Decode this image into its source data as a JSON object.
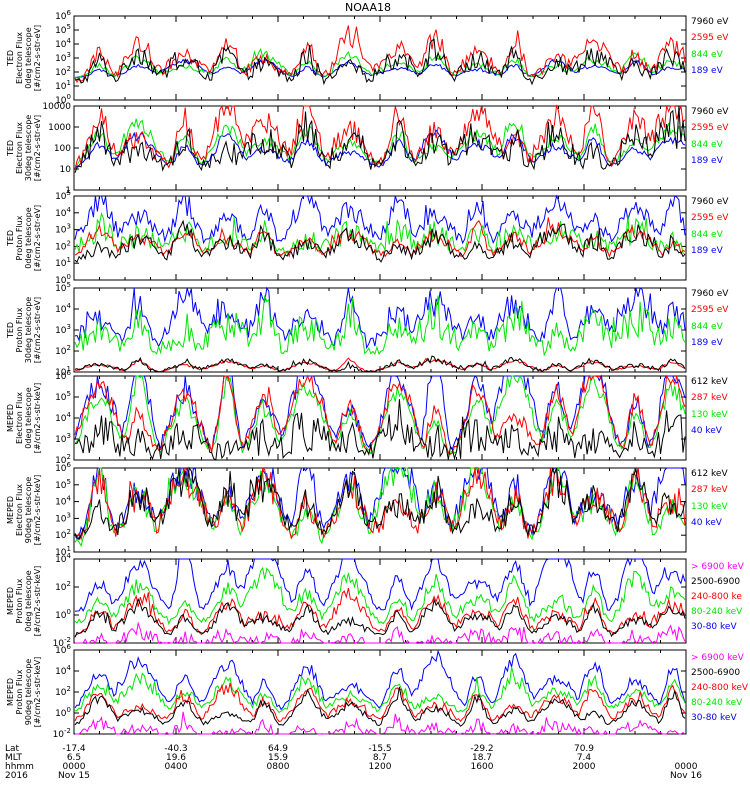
{
  "title": "NOAA18",
  "colors": {
    "black": "#000000",
    "red": "#ff0000",
    "green": "#00e600",
    "blue": "#0000ff",
    "magenta": "#ff00ff"
  },
  "footer": {
    "row_labels": [
      "Lat",
      "MLT",
      "hhmm",
      "2016"
    ],
    "ticks": [
      {
        "lat": "-17.4",
        "mlt": "6.5",
        "time": "0000",
        "date": "Nov 15"
      },
      {
        "lat": "-40.3",
        "mlt": "19.6",
        "time": "0400",
        "date": ""
      },
      {
        "lat": "64.9",
        "mlt": "15.9",
        "time": "0800",
        "date": ""
      },
      {
        "lat": "-15.5",
        "mlt": "8.7",
        "time": "1200",
        "date": ""
      },
      {
        "lat": "-29.2",
        "mlt": "18.7",
        "time": "1600",
        "date": ""
      },
      {
        "lat": "70.9",
        "mlt": "7.4",
        "time": "2000",
        "date": ""
      },
      {
        "lat": "",
        "mlt": "",
        "time": "0000",
        "date": "Nov 16"
      }
    ]
  },
  "chart_data": [
    {
      "type": "line",
      "ylabel": [
        "TED",
        "Electron Flux",
        "0deg telescope",
        "[#/cm2-s-str-eV]"
      ],
      "yscale": "log",
      "yticks": [
        "10^0",
        "10^1",
        "10^2",
        "10^3",
        "10^4",
        "10^5",
        "10^6"
      ],
      "xlim": [
        "0000",
        "0000"
      ],
      "series": [
        {
          "name": "7960 eV",
          "color": "#000000",
          "level": 1.3,
          "peak": 3.2,
          "spike": 0.55
        },
        {
          "name": "2595 eV",
          "color": "#ff0000",
          "level": 1.5,
          "peak": 4.1,
          "spike": 0.5
        },
        {
          "name": "844 eV",
          "color": "#00e600",
          "level": 1.6,
          "peak": 3.0,
          "spike": 0.2
        },
        {
          "name": "189 eV",
          "color": "#0000ff",
          "level": 1.6,
          "peak": 2.6,
          "spike": 0.1
        }
      ]
    },
    {
      "type": "line",
      "ylabel": [
        "TED",
        "Electron Flux",
        "30deg telescope",
        "[#/cm2-s-str-eV]"
      ],
      "yscale": "log",
      "yticks": [
        "1",
        "10",
        "100",
        "1000",
        "10000"
      ],
      "series": [
        {
          "name": "7960 eV",
          "color": "#000000",
          "level": 1.0,
          "peak": 2.6,
          "spike": 0.55
        },
        {
          "name": "2595 eV",
          "color": "#ff0000",
          "level": 1.1,
          "peak": 3.7,
          "spike": 0.5
        },
        {
          "name": "844 eV",
          "color": "#00e600",
          "level": 1.2,
          "peak": 2.8,
          "spike": 0.2
        },
        {
          "name": "189 eV",
          "color": "#0000ff",
          "level": 1.1,
          "peak": 2.4,
          "spike": 0.15
        }
      ]
    },
    {
      "type": "line",
      "ylabel": [
        "TED",
        "Proton Flux",
        "0deg telescope",
        "[#/cm2-s-str-eV]"
      ],
      "yscale": "log",
      "yticks": [
        "10^0",
        "10^1",
        "10^2",
        "10^3",
        "10^4",
        "10^5"
      ],
      "series": [
        {
          "name": "7960 eV",
          "color": "#000000",
          "level": 1.1,
          "peak": 2.6,
          "spike": 0.4
        },
        {
          "name": "2595 eV",
          "color": "#ff0000",
          "level": 1.3,
          "peak": 2.8,
          "spike": 0.3
        },
        {
          "name": "844 eV",
          "color": "#00e600",
          "level": 1.7,
          "peak": 3.0,
          "spike": 0.6
        },
        {
          "name": "189 eV",
          "color": "#0000ff",
          "level": 2.2,
          "peak": 4.6,
          "spike": 0.5
        }
      ]
    },
    {
      "type": "line",
      "ylabel": [
        "TED",
        "Proton Flux",
        "30deg telescope",
        "[#/cm2-s-str-eV]"
      ],
      "yscale": "log",
      "yticks": [
        "10^1",
        "10^2",
        "10^3",
        "10^4",
        "10^5"
      ],
      "series": [
        {
          "name": "7960 eV",
          "color": "#000000",
          "level": 1.0,
          "peak": 1.5,
          "spike": 0.1
        },
        {
          "name": "2595 eV",
          "color": "#ff0000",
          "level": 1.0,
          "peak": 1.5,
          "spike": 0.05
        },
        {
          "name": "844 eV",
          "color": "#00e600",
          "level": 2.0,
          "peak": 3.4,
          "spike": 0.6
        },
        {
          "name": "189 eV",
          "color": "#0000ff",
          "level": 2.3,
          "peak": 4.4,
          "spike": 0.5
        }
      ]
    },
    {
      "type": "line",
      "ylabel": [
        "MEPED",
        "Electron Flux",
        "0deg telescope",
        "[#/cm2-s-str-keV]"
      ],
      "yscale": "log",
      "yticks": [
        "10^2",
        "10^3",
        "10^4",
        "10^5",
        "10^6"
      ],
      "series": [
        {
          "name": "612 keV",
          "color": "#000000",
          "level": 2.3,
          "peak": 3.3,
          "spike": 0.7
        },
        {
          "name": "287 keV",
          "color": "#ff0000",
          "level": 2.1,
          "peak": 5.6,
          "spike": 0.35
        },
        {
          "name": "130 keV",
          "color": "#00e600",
          "level": 2.0,
          "peak": 5.3,
          "spike": 0.3
        },
        {
          "name": "40 keV",
          "color": "#0000ff",
          "level": 2.1,
          "peak": 6.5,
          "spike": 0.45
        }
      ]
    },
    {
      "type": "line",
      "ylabel": [
        "MEPED",
        "Electron Flux",
        "90deg telescope",
        "[#/cm2-s-str-keV]"
      ],
      "yscale": "log",
      "yticks": [
        "10^1",
        "10^2",
        "10^3",
        "10^4",
        "10^5",
        "10^6"
      ],
      "series": [
        {
          "name": "612 keV",
          "color": "#000000",
          "level": 2.0,
          "peak": 4.8,
          "spike": 0.75
        },
        {
          "name": "287 keV",
          "color": "#ff0000",
          "level": 1.8,
          "peak": 5.0,
          "spike": 0.7
        },
        {
          "name": "130 keV",
          "color": "#00e600",
          "level": 1.5,
          "peak": 5.3,
          "spike": 0.65
        },
        {
          "name": "40 keV",
          "color": "#0000ff",
          "level": 2.0,
          "peak": 6.1,
          "spike": 0.7
        }
      ]
    },
    {
      "type": "line",
      "ylabel": [
        "MEPED",
        "Proton Flux",
        "0deg telescope",
        "[#/cm2-s-str-keV]"
      ],
      "yscale": "log",
      "yticks": [
        "10^-2",
        "10^0",
        "10^2",
        "10^4"
      ],
      "series": [
        {
          "name": "> 6900 keV",
          "color": "#ff00ff",
          "level": -2.3,
          "peak": -1.4,
          "spike": 0.4
        },
        {
          "name": "2500-6900",
          "color": "#000000",
          "level": -1.5,
          "peak": 0.4,
          "spike": 0.3
        },
        {
          "name": "240-800 ke",
          "color": "#ff0000",
          "level": -1.4,
          "peak": 1.0,
          "spike": 0.35
        },
        {
          "name": "80-240 keV",
          "color": "#00e600",
          "level": -0.7,
          "peak": 2.2,
          "spike": 0.4
        },
        {
          "name": "30-80 keV",
          "color": "#0000ff",
          "level": 0.0,
          "peak": 4.2,
          "spike": 0.4
        }
      ]
    },
    {
      "type": "line",
      "ylabel": [
        "MEPED",
        "Proton Flux",
        "90deg telescope",
        "[#/cm2-s-str-keV]"
      ],
      "yscale": "log",
      "yticks": [
        "10^-2",
        "10^0",
        "10^2",
        "10^4",
        "10^6"
      ],
      "series": [
        {
          "name": "> 6900 keV",
          "color": "#ff00ff",
          "level": -2.3,
          "peak": -1.2,
          "spike": 0.4
        },
        {
          "name": "2500-6900",
          "color": "#000000",
          "level": -1.4,
          "peak": 1.2,
          "spike": 0.3
        },
        {
          "name": "240-800 keV",
          "color": "#ff0000",
          "level": -1.0,
          "peak": 1.8,
          "spike": 0.35
        },
        {
          "name": "80-240 keV",
          "color": "#00e600",
          "level": 0.0,
          "peak": 2.6,
          "spike": 0.4
        },
        {
          "name": "30-80 keV",
          "color": "#0000ff",
          "level": 0.2,
          "peak": 4.5,
          "spike": 0.4
        }
      ]
    }
  ]
}
